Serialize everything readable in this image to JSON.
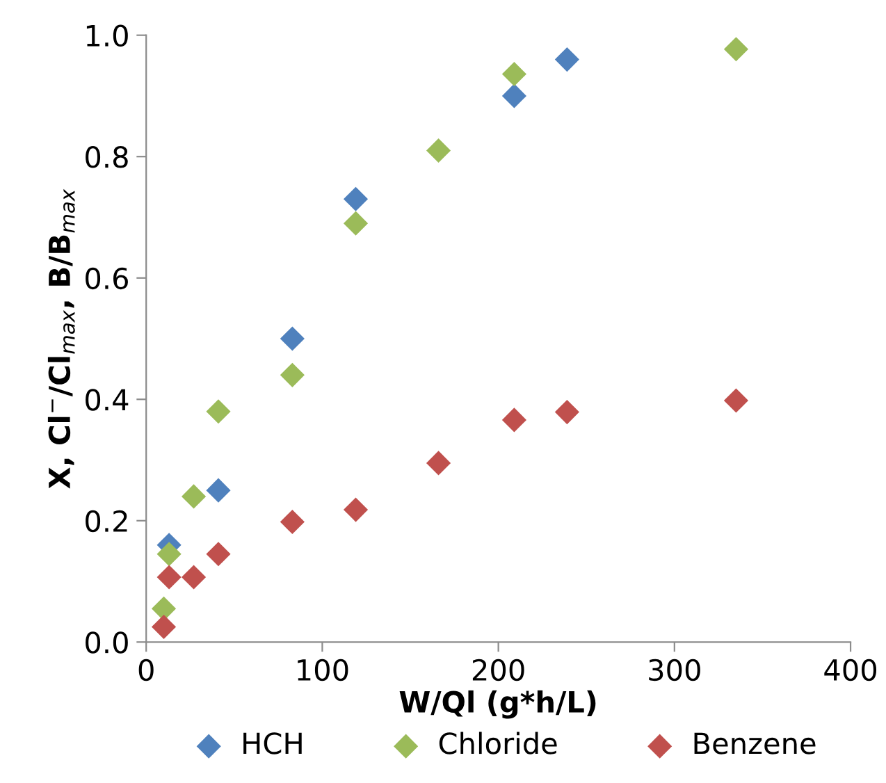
{
  "chart_data": {
    "type": "scatter",
    "xlabel": "W/Ql (g*h/L)",
    "ylabel": "X, Cl$^{−}$/Cl$_{max}$, B/B$_{max}$",
    "xlim": [
      0,
      400
    ],
    "xticks": [
      0,
      100,
      200,
      300,
      400
    ],
    "ylim": [
      0,
      1.0
    ],
    "yticks": [
      {
        "value": 0,
        "label": "0.0"
      },
      {
        "value": 0.2,
        "label": "0.2"
      },
      {
        "value": 0.4,
        "label": "0.4"
      },
      {
        "value": 0.6,
        "label": "0.6"
      },
      {
        "value": 0.8,
        "label": "0.8"
      },
      {
        "value": 1.0,
        "label": "1.0"
      }
    ],
    "grid": false,
    "legend": "bottom",
    "marker": "diamond",
    "series": [
      {
        "name": "HCH",
        "color": "#4f81bd",
        "x": [
          13,
          41,
          83,
          119,
          209,
          239
        ],
        "values": [
          0.16,
          0.25,
          0.5,
          0.73,
          0.9,
          0.96
        ]
      },
      {
        "name": "Chloride",
        "color": "#9bbb59",
        "x": [
          10,
          13,
          27,
          41,
          83,
          119,
          166,
          209,
          335
        ],
        "values": [
          0.055,
          0.145,
          0.24,
          0.38,
          0.44,
          0.69,
          0.81,
          0.936,
          0.977
        ]
      },
      {
        "name": "Benzene",
        "color": "#c0504d",
        "x": [
          10,
          13,
          27,
          41,
          83,
          119,
          166,
          209,
          239,
          335
        ],
        "values": [
          0.025,
          0.107,
          0.107,
          0.145,
          0.198,
          0.218,
          0.295,
          0.366,
          0.379,
          0.398
        ]
      }
    ]
  }
}
